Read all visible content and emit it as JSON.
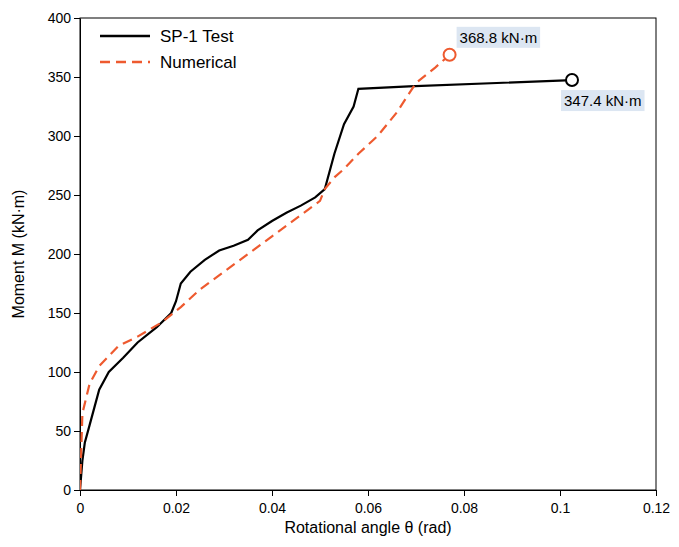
{
  "chart_data": {
    "type": "line",
    "x_label": "Rotational angle θ (rad)",
    "y_label": "Moment M (kN·m)",
    "xlim": [
      0,
      0.12
    ],
    "xticks": [
      0,
      0.02,
      0.04,
      0.06,
      0.08,
      0.1,
      0.12
    ],
    "ylim": [
      0,
      400
    ],
    "yticks": [
      0,
      50,
      100,
      150,
      200,
      250,
      300,
      350,
      400
    ],
    "grid": false,
    "legend": "upper left",
    "series": [
      {
        "name": "SP-1 Test",
        "color": "#000000",
        "line_style": "solid",
        "x": [
          0,
          0.0005,
          0.001,
          0.002,
          0.003,
          0.004,
          0.006,
          0.009,
          0.012,
          0.016,
          0.019,
          0.02,
          0.021,
          0.023,
          0.026,
          0.029,
          0.032,
          0.035,
          0.037,
          0.04,
          0.043,
          0.046,
          0.049,
          0.051,
          0.053,
          0.055,
          0.057,
          0.058,
          0.0685,
          0.1025
        ],
        "values": [
          0,
          25,
          40,
          55,
          70,
          85,
          100,
          112,
          125,
          138,
          150,
          160,
          175,
          185,
          195,
          203,
          207,
          212,
          220,
          228,
          235,
          241,
          248,
          255,
          285,
          310,
          325,
          340,
          342,
          347.4
        ]
      },
      {
        "name": "Numerical",
        "color": "#ee5a2f",
        "line_style": "dashed",
        "x": [
          0,
          0.0005,
          0.002,
          0.004,
          0.008,
          0.012,
          0.017,
          0.021,
          0.025,
          0.03,
          0.035,
          0.04,
          0.045,
          0.05,
          0.051,
          0.053,
          0.055,
          0.058,
          0.062,
          0.066,
          0.07,
          0.074,
          0.077
        ],
        "values": [
          0,
          65,
          90,
          105,
          122,
          130,
          142,
          155,
          170,
          185,
          200,
          215,
          230,
          245,
          255,
          265,
          272,
          285,
          300,
          320,
          345,
          358,
          368.8
        ]
      }
    ],
    "annotations": [
      {
        "text": "368.8 kN·m",
        "x": 0.077,
        "y": 368.8
      },
      {
        "text": "347.4 kN·m",
        "x": 0.1025,
        "y": 347.4
      }
    ]
  }
}
